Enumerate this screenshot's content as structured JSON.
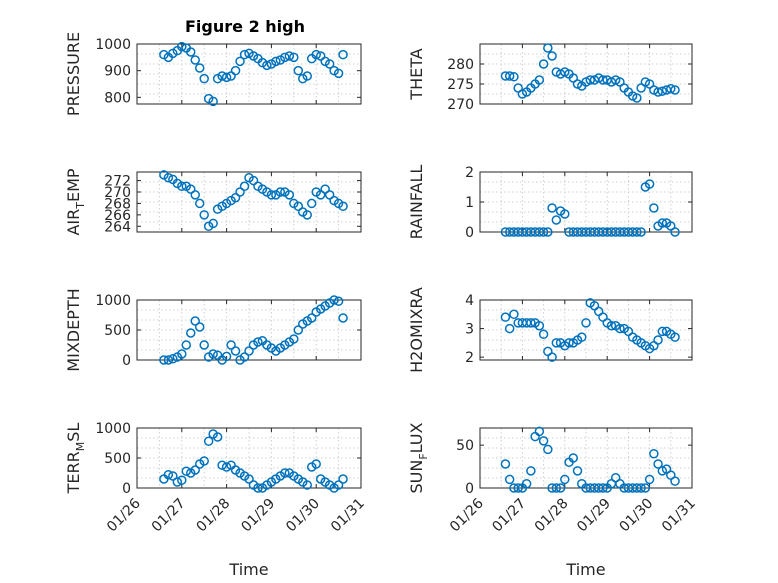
{
  "colors": {
    "marker": "#0072BD",
    "axis": "#262626",
    "grid": "#d0d0d0",
    "background": "#ffffff"
  },
  "figure_title": "Figure 2 high",
  "shared_x": {
    "label": "Time",
    "tick_values": [
      0,
      1,
      2,
      3,
      4,
      5
    ],
    "tick_labels": [
      "01/26",
      "01/27",
      "01/28",
      "01/29",
      "01/30",
      "01/31"
    ],
    "range": [
      0,
      5
    ]
  },
  "chart_data": [
    {
      "type": "scatter",
      "name": "pressure",
      "ylabel": "PRESSURE",
      "ylim": [
        775,
        1000
      ],
      "yticks": [
        800,
        900,
        1000
      ],
      "title": "Figure 2 high",
      "x": [
        0.6,
        0.7,
        0.8,
        0.9,
        1.0,
        1.1,
        1.2,
        1.3,
        1.4,
        1.5,
        1.6,
        1.7,
        1.8,
        1.9,
        2.0,
        2.1,
        2.2,
        2.3,
        2.4,
        2.5,
        2.6,
        2.7,
        2.8,
        2.9,
        3.0,
        3.1,
        3.2,
        3.3,
        3.4,
        3.5,
        3.6,
        3.7,
        3.8,
        3.9,
        4.0,
        4.1,
        4.2,
        4.3,
        4.4,
        4.5,
        4.6
      ],
      "y": [
        960,
        950,
        965,
        975,
        990,
        985,
        970,
        940,
        910,
        870,
        795,
        785,
        870,
        880,
        875,
        880,
        900,
        935,
        960,
        965,
        955,
        945,
        930,
        920,
        925,
        935,
        940,
        950,
        955,
        950,
        900,
        870,
        880,
        945,
        960,
        955,
        935,
        925,
        900,
        890,
        960
      ]
    },
    {
      "type": "scatter",
      "name": "theta",
      "ylabel": "THETA",
      "ylim": [
        270,
        285
      ],
      "yticks": [
        270,
        275,
        280
      ],
      "x": [
        0.6,
        0.7,
        0.8,
        0.9,
        1.0,
        1.1,
        1.2,
        1.3,
        1.4,
        1.5,
        1.6,
        1.7,
        1.8,
        1.9,
        2.0,
        2.1,
        2.2,
        2.3,
        2.4,
        2.5,
        2.6,
        2.7,
        2.8,
        2.9,
        3.0,
        3.1,
        3.2,
        3.3,
        3.4,
        3.5,
        3.6,
        3.7,
        3.8,
        3.9,
        4.0,
        4.1,
        4.2,
        4.3,
        4.4,
        4.5,
        4.6
      ],
      "y": [
        277,
        277,
        276.8,
        274,
        272.5,
        273,
        274,
        275,
        276,
        280,
        284,
        282,
        278,
        277.5,
        278,
        277.5,
        276.5,
        275,
        274.5,
        275.5,
        276,
        276,
        276.5,
        276,
        276,
        275.5,
        276,
        275.5,
        274,
        273,
        272,
        271.5,
        274,
        275.5,
        275,
        273.5,
        273,
        273.2,
        273.5,
        273.8,
        273.5
      ]
    },
    {
      "type": "scatter",
      "name": "air_temp",
      "ylabel": "AIR_TEMP",
      "ylim": [
        263,
        273.5
      ],
      "yticks": [
        264,
        266,
        268,
        270,
        272
      ],
      "x": [
        0.6,
        0.7,
        0.8,
        0.9,
        1.0,
        1.1,
        1.2,
        1.3,
        1.4,
        1.5,
        1.6,
        1.7,
        1.8,
        1.9,
        2.0,
        2.1,
        2.2,
        2.3,
        2.4,
        2.5,
        2.6,
        2.7,
        2.8,
        2.9,
        3.0,
        3.1,
        3.2,
        3.3,
        3.4,
        3.5,
        3.6,
        3.7,
        3.8,
        3.9,
        4.0,
        4.1,
        4.2,
        4.3,
        4.4,
        4.5,
        4.6
      ],
      "y": [
        273,
        272.5,
        272.2,
        271.5,
        271,
        271,
        270.5,
        269.5,
        268,
        266,
        264,
        264.5,
        267,
        267.5,
        268,
        268.5,
        269,
        270,
        271,
        272.5,
        272,
        271,
        270.5,
        270,
        269.5,
        269.5,
        270,
        270,
        269.5,
        268,
        267.5,
        266.5,
        266,
        268,
        270,
        269.5,
        270.5,
        269.5,
        268.5,
        268,
        267.5
      ]
    },
    {
      "type": "scatter",
      "name": "rainfall",
      "ylabel": "RAINFALL",
      "ylim": [
        0,
        2
      ],
      "yticks": [
        0,
        1,
        2
      ],
      "x": [
        0.6,
        0.7,
        0.8,
        0.9,
        1.0,
        1.1,
        1.2,
        1.3,
        1.4,
        1.5,
        1.6,
        1.7,
        1.8,
        1.9,
        2.0,
        2.1,
        2.2,
        2.3,
        2.4,
        2.5,
        2.6,
        2.7,
        2.8,
        2.9,
        3.0,
        3.1,
        3.2,
        3.3,
        3.4,
        3.5,
        3.6,
        3.7,
        3.8,
        3.9,
        4.0,
        4.1,
        4.2,
        4.3,
        4.4,
        4.5,
        4.6
      ],
      "y": [
        0,
        0,
        0,
        0,
        0,
        0,
        0,
        0,
        0,
        0,
        0,
        0.8,
        0.4,
        0.7,
        0.6,
        0,
        0,
        0,
        0,
        0,
        0,
        0,
        0,
        0,
        0,
        0,
        0,
        0,
        0,
        0,
        0,
        0,
        0,
        1.5,
        1.6,
        0.8,
        0.2,
        0.3,
        0.3,
        0.2,
        0
      ]
    },
    {
      "type": "scatter",
      "name": "mixdepth",
      "ylabel": "MIXDEPTH",
      "ylim": [
        0,
        1000
      ],
      "yticks": [
        0,
        500,
        1000
      ],
      "x": [
        0.6,
        0.7,
        0.8,
        0.9,
        1.0,
        1.1,
        1.2,
        1.3,
        1.4,
        1.5,
        1.6,
        1.7,
        1.8,
        1.9,
        2.0,
        2.1,
        2.2,
        2.3,
        2.4,
        2.5,
        2.6,
        2.7,
        2.8,
        2.9,
        3.0,
        3.1,
        3.2,
        3.3,
        3.4,
        3.5,
        3.6,
        3.7,
        3.8,
        3.9,
        4.0,
        4.1,
        4.2,
        4.3,
        4.4,
        4.5,
        4.6
      ],
      "y": [
        0,
        0,
        20,
        50,
        100,
        250,
        450,
        650,
        550,
        250,
        50,
        100,
        80,
        0,
        60,
        250,
        150,
        0,
        50,
        150,
        250,
        300,
        320,
        250,
        200,
        150,
        200,
        250,
        300,
        350,
        500,
        600,
        650,
        700,
        800,
        850,
        900,
        950,
        1000,
        980,
        700
      ]
    },
    {
      "type": "scatter",
      "name": "h2omixra",
      "ylabel": "H2OMIXRA",
      "ylim": [
        1.9,
        4
      ],
      "yticks": [
        2,
        3,
        4
      ],
      "x": [
        0.6,
        0.7,
        0.8,
        0.9,
        1.0,
        1.1,
        1.2,
        1.3,
        1.4,
        1.5,
        1.6,
        1.7,
        1.8,
        1.9,
        2.0,
        2.1,
        2.2,
        2.3,
        2.4,
        2.5,
        2.6,
        2.7,
        2.8,
        2.9,
        3.0,
        3.1,
        3.2,
        3.3,
        3.4,
        3.5,
        3.6,
        3.7,
        3.8,
        3.9,
        4.0,
        4.1,
        4.2,
        4.3,
        4.4,
        4.5,
        4.6
      ],
      "y": [
        3.4,
        3.0,
        3.5,
        3.2,
        3.2,
        3.2,
        3.2,
        3.2,
        3.1,
        2.8,
        2.2,
        2.0,
        2.5,
        2.5,
        2.4,
        2.5,
        2.5,
        2.6,
        2.7,
        3.2,
        3.9,
        3.8,
        3.6,
        3.4,
        3.2,
        3.1,
        3.1,
        3.0,
        3.0,
        2.9,
        2.7,
        2.6,
        2.5,
        2.4,
        2.3,
        2.4,
        2.6,
        2.9,
        2.9,
        2.8,
        2.7
      ]
    },
    {
      "type": "scatter",
      "name": "terr_msl",
      "ylabel": "TERR_MSL",
      "ylim": [
        0,
        1000
      ],
      "yticks": [
        0,
        500,
        1000
      ],
      "x": [
        0.6,
        0.7,
        0.8,
        0.9,
        1.0,
        1.1,
        1.2,
        1.3,
        1.4,
        1.5,
        1.6,
        1.7,
        1.8,
        1.9,
        2.0,
        2.1,
        2.2,
        2.3,
        2.4,
        2.5,
        2.6,
        2.7,
        2.8,
        2.9,
        3.0,
        3.1,
        3.2,
        3.3,
        3.4,
        3.5,
        3.6,
        3.7,
        3.8,
        3.9,
        4.0,
        4.1,
        4.2,
        4.3,
        4.4,
        4.5,
        4.6
      ],
      "y": [
        150,
        220,
        200,
        100,
        130,
        280,
        250,
        300,
        400,
        450,
        780,
        900,
        850,
        380,
        350,
        380,
        300,
        250,
        200,
        150,
        50,
        0,
        0,
        50,
        100,
        150,
        200,
        250,
        250,
        200,
        150,
        100,
        50,
        350,
        400,
        150,
        100,
        50,
        0,
        50,
        150
      ]
    },
    {
      "type": "scatter",
      "name": "sun_flux",
      "ylabel": "SUN_FLUX",
      "ylim": [
        0,
        70
      ],
      "yticks": [
        0,
        50
      ],
      "x": [
        0.6,
        0.7,
        0.8,
        0.9,
        1.0,
        1.1,
        1.2,
        1.3,
        1.4,
        1.5,
        1.6,
        1.7,
        1.8,
        1.9,
        2.0,
        2.1,
        2.2,
        2.3,
        2.4,
        2.5,
        2.6,
        2.7,
        2.8,
        2.9,
        3.0,
        3.1,
        3.2,
        3.3,
        3.4,
        3.5,
        3.6,
        3.7,
        3.8,
        3.9,
        4.0,
        4.1,
        4.2,
        4.3,
        4.4,
        4.5,
        4.6
      ],
      "y": [
        28,
        10,
        0,
        0,
        0,
        5,
        20,
        60,
        66,
        55,
        45,
        0,
        0,
        0,
        10,
        30,
        35,
        20,
        5,
        0,
        0,
        0,
        0,
        0,
        0,
        5,
        12,
        5,
        0,
        0,
        0,
        0,
        0,
        0,
        10,
        40,
        28,
        20,
        22,
        15,
        8
      ]
    }
  ]
}
